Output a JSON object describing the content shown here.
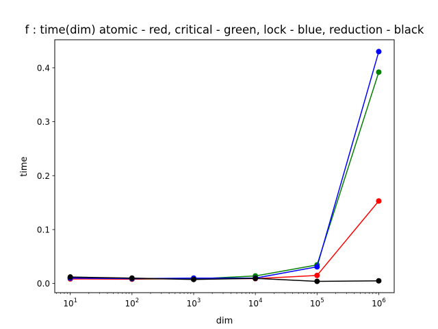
{
  "chart_data": {
    "type": "line",
    "title": "f : time(dim) atomic - red, critical - green, lock - blue, reduction - black",
    "xlabel": "dim",
    "ylabel": "time",
    "x_scale": "log",
    "x": [
      10,
      100,
      1000,
      10000,
      100000,
      1000000
    ],
    "x_tick_labels": [
      {
        "base": "10",
        "exp": "1"
      },
      {
        "base": "10",
        "exp": "2"
      },
      {
        "base": "10",
        "exp": "3"
      },
      {
        "base": "10",
        "exp": "4"
      },
      {
        "base": "10",
        "exp": "5"
      },
      {
        "base": "10",
        "exp": "6"
      }
    ],
    "y_ticks": [
      0.0,
      0.1,
      0.2,
      0.3,
      0.4
    ],
    "y_tick_labels": [
      "0.0",
      "0.1",
      "0.2",
      "0.3",
      "0.4"
    ],
    "xlim": [
      5.6,
      1780000
    ],
    "ylim": [
      -0.017,
      0.452
    ],
    "grid": false,
    "series": [
      {
        "color": "#ff0000",
        "values": [
          0.0085,
          0.008,
          0.009,
          0.009,
          0.015,
          0.153
        ]
      },
      {
        "color": "#008000",
        "values": [
          0.011,
          0.009,
          0.0085,
          0.014,
          0.0345,
          0.392
        ]
      },
      {
        "color": "#0000ff",
        "values": [
          0.01,
          0.009,
          0.01,
          0.01,
          0.031,
          0.43
        ]
      },
      {
        "color": "#000000",
        "values": [
          0.012,
          0.01,
          0.0075,
          0.0095,
          0.004,
          0.005
        ]
      }
    ]
  }
}
